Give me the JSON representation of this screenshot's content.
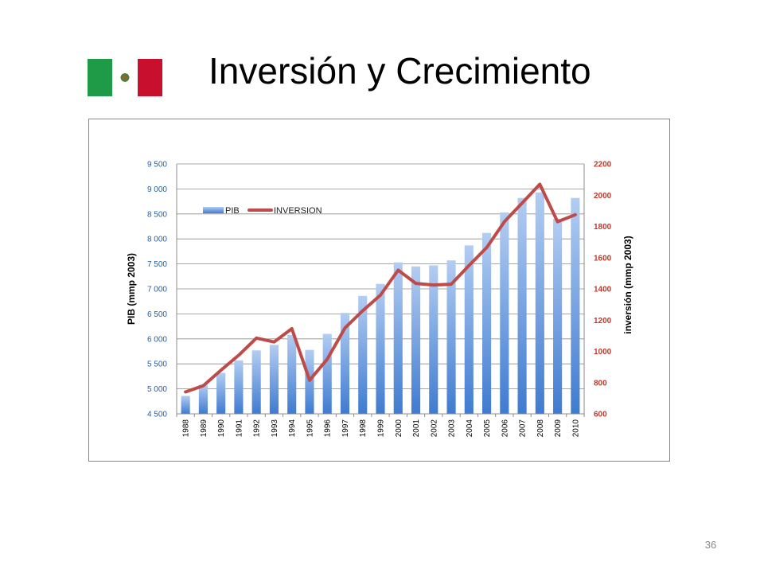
{
  "slide": {
    "title": "Inversión y Crecimiento",
    "page_number": "36"
  },
  "flag": {
    "country": "Mexico",
    "colors": [
      "#1f9b48",
      "#ffffff",
      "#c8102e"
    ]
  },
  "chart_data": {
    "type": "bar",
    "categories": [
      "1988",
      "1989",
      "1990",
      "1991",
      "1992",
      "1993",
      "1994",
      "1995",
      "1996",
      "1997",
      "1998",
      "1999",
      "2000",
      "2001",
      "2002",
      "2003",
      "2004",
      "2005",
      "2006",
      "2007",
      "2008",
      "2009",
      "2010"
    ],
    "series": [
      {
        "name": "PIB",
        "type": "bar",
        "axis": "left",
        "color": "#4a86d8",
        "values": [
          4860,
          5080,
          5320,
          5570,
          5770,
          5880,
          6080,
          5780,
          6100,
          6520,
          6860,
          7100,
          7530,
          7450,
          7470,
          7570,
          7870,
          8120,
          8530,
          8820,
          8930,
          8400,
          8820
        ]
      },
      {
        "name": "INVERSION",
        "type": "line",
        "axis": "right",
        "color": "#be4b48",
        "values": [
          740,
          780,
          880,
          975,
          1085,
          1060,
          1145,
          815,
          950,
          1150,
          1260,
          1360,
          1520,
          1435,
          1425,
          1430,
          1550,
          1665,
          1830,
          1950,
          2070,
          1830,
          1875
        ]
      }
    ],
    "y_left": {
      "label": "PIB (mmp 2003)",
      "min": 4500,
      "max": 9500,
      "step": 500,
      "tick_labels": [
        "4 500",
        "5 000",
        "5 500",
        "6 000",
        "6 500",
        "7 000",
        "7 500",
        "8 000",
        "8 500",
        "9 000",
        "9 500"
      ],
      "color": "#1f5fa8"
    },
    "y_right": {
      "label": "inversión (mmp 2003)",
      "min": 600,
      "max": 2200,
      "step": 200,
      "tick_labels": [
        "600",
        "800",
        "1000",
        "1200",
        "1400",
        "1600",
        "1800",
        "2000",
        "2200"
      ],
      "color": "#c0392b"
    },
    "grid": true,
    "legend": {
      "placement": "top-left",
      "items": [
        "PIB",
        "INVERSION"
      ]
    }
  }
}
